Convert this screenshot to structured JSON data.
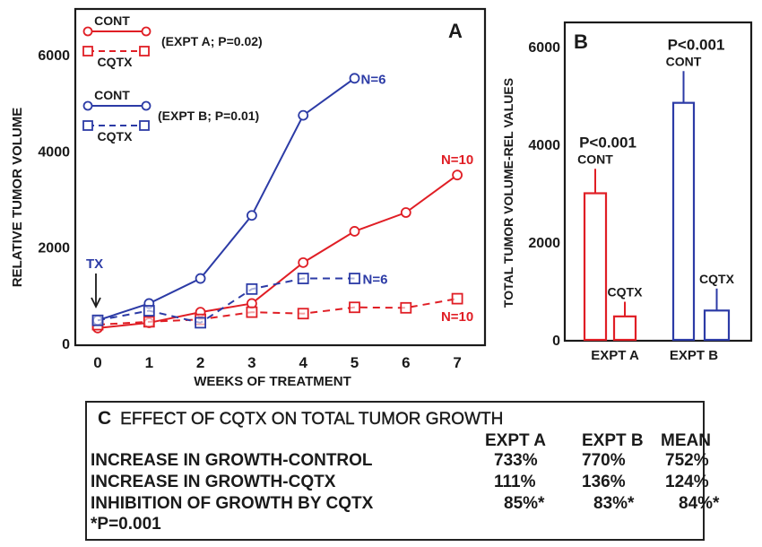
{
  "colors": {
    "expt_a": "#e01e25",
    "expt_b": "#2c3ba6",
    "axis": "#1a1a1a"
  },
  "chart_data": [
    {
      "id": "A",
      "type": "line",
      "panel_label": "A",
      "title": "",
      "xlabel": "WEEKS OF TREATMENT",
      "ylabel": "RELATIVE TUMOR VOLUME",
      "xlim": [
        0,
        7
      ],
      "ylim": [
        0,
        6000
      ],
      "xticks": [
        0,
        1,
        2,
        3,
        4,
        5,
        6,
        7
      ],
      "yticks": [
        0,
        2000,
        4000,
        6000
      ],
      "grid": false,
      "legend": [
        {
          "label_top": "CONT",
          "label_bottom": "CQTX",
          "note": "(EXPT A; P=0.02)",
          "color_key": "expt_a"
        },
        {
          "label_top": "CONT",
          "label_bottom": "CQTX",
          "note": "(EXPT B; P=0.01)",
          "color_key": "expt_b"
        }
      ],
      "legend_position": "top-left",
      "annotations": {
        "tx_label": "TX",
        "tx_week": 0
      },
      "series": [
        {
          "name": "EXPT A CONT",
          "color_key": "expt_a",
          "marker": "circle",
          "dash": false,
          "x": [
            0,
            1,
            2,
            3,
            4,
            5,
            6,
            7
          ],
          "y": [
            320,
            430,
            650,
            830,
            1680,
            2330,
            2720,
            3500
          ],
          "end_label": "N=10"
        },
        {
          "name": "EXPT A CQTX",
          "color_key": "expt_a",
          "marker": "square",
          "dash": true,
          "x": [
            0,
            1,
            2,
            3,
            4,
            5,
            6,
            7
          ],
          "y": [
            390,
            450,
            500,
            650,
            620,
            750,
            740,
            930
          ],
          "end_label": "N=10"
        },
        {
          "name": "EXPT B CONT",
          "color_key": "expt_b",
          "marker": "circle",
          "dash": false,
          "x": [
            0,
            1,
            2,
            3,
            4,
            5
          ],
          "y": [
            480,
            830,
            1350,
            2660,
            4740,
            5510
          ],
          "end_label": "N=6"
        },
        {
          "name": "EXPT B CQTX",
          "color_key": "expt_b",
          "marker": "square",
          "dash": true,
          "x": [
            0,
            1,
            2,
            3,
            4,
            5
          ],
          "y": [
            480,
            680,
            430,
            1130,
            1350,
            1350
          ],
          "end_label": "N=6"
        }
      ]
    },
    {
      "id": "B",
      "type": "bar",
      "panel_label": "B",
      "title": "",
      "xlabel": "",
      "ylabel": "TOTAL TUMOR VOLUME-REL VALUES",
      "ylim": [
        0,
        6500
      ],
      "yticks": [
        0,
        2000,
        4000,
        6000
      ],
      "grid": false,
      "categories": [
        "EXPT A",
        "EXPT B"
      ],
      "bars": [
        {
          "group": "EXPT A",
          "label": "CONT",
          "pvalue": "P<0.001",
          "value": 3000,
          "error_top": 3500,
          "color_key": "expt_a"
        },
        {
          "group": "EXPT A",
          "label": "CQTX",
          "pvalue": "",
          "value": 480,
          "error_top": 780,
          "color_key": "expt_a"
        },
        {
          "group": "EXPT B",
          "label": "CONT",
          "pvalue": "P<0.001",
          "value": 4850,
          "error_top": 5500,
          "color_key": "expt_b"
        },
        {
          "group": "EXPT B",
          "label": "CQTX",
          "pvalue": "",
          "value": 600,
          "error_top": 1050,
          "color_key": "expt_b"
        }
      ]
    },
    {
      "id": "C",
      "type": "table",
      "panel_label": "C",
      "title": "EFFECT OF CQTX ON TOTAL TUMOR GROWTH",
      "columns": [
        "EXPT A",
        "EXPT B",
        "MEAN"
      ],
      "rows": [
        {
          "label": "INCREASE IN GROWTH-CONTROL",
          "values": [
            "733%",
            "770%",
            "752%"
          ]
        },
        {
          "label": "INCREASE IN GROWTH-CQTX",
          "values": [
            "111%",
            "136%",
            "124%"
          ]
        },
        {
          "label": "INHIBITION OF GROWTH BY CQTX",
          "values": [
            "85%*",
            "83%*",
            "84%*"
          ]
        }
      ],
      "footnote": "*P=0.001"
    }
  ]
}
